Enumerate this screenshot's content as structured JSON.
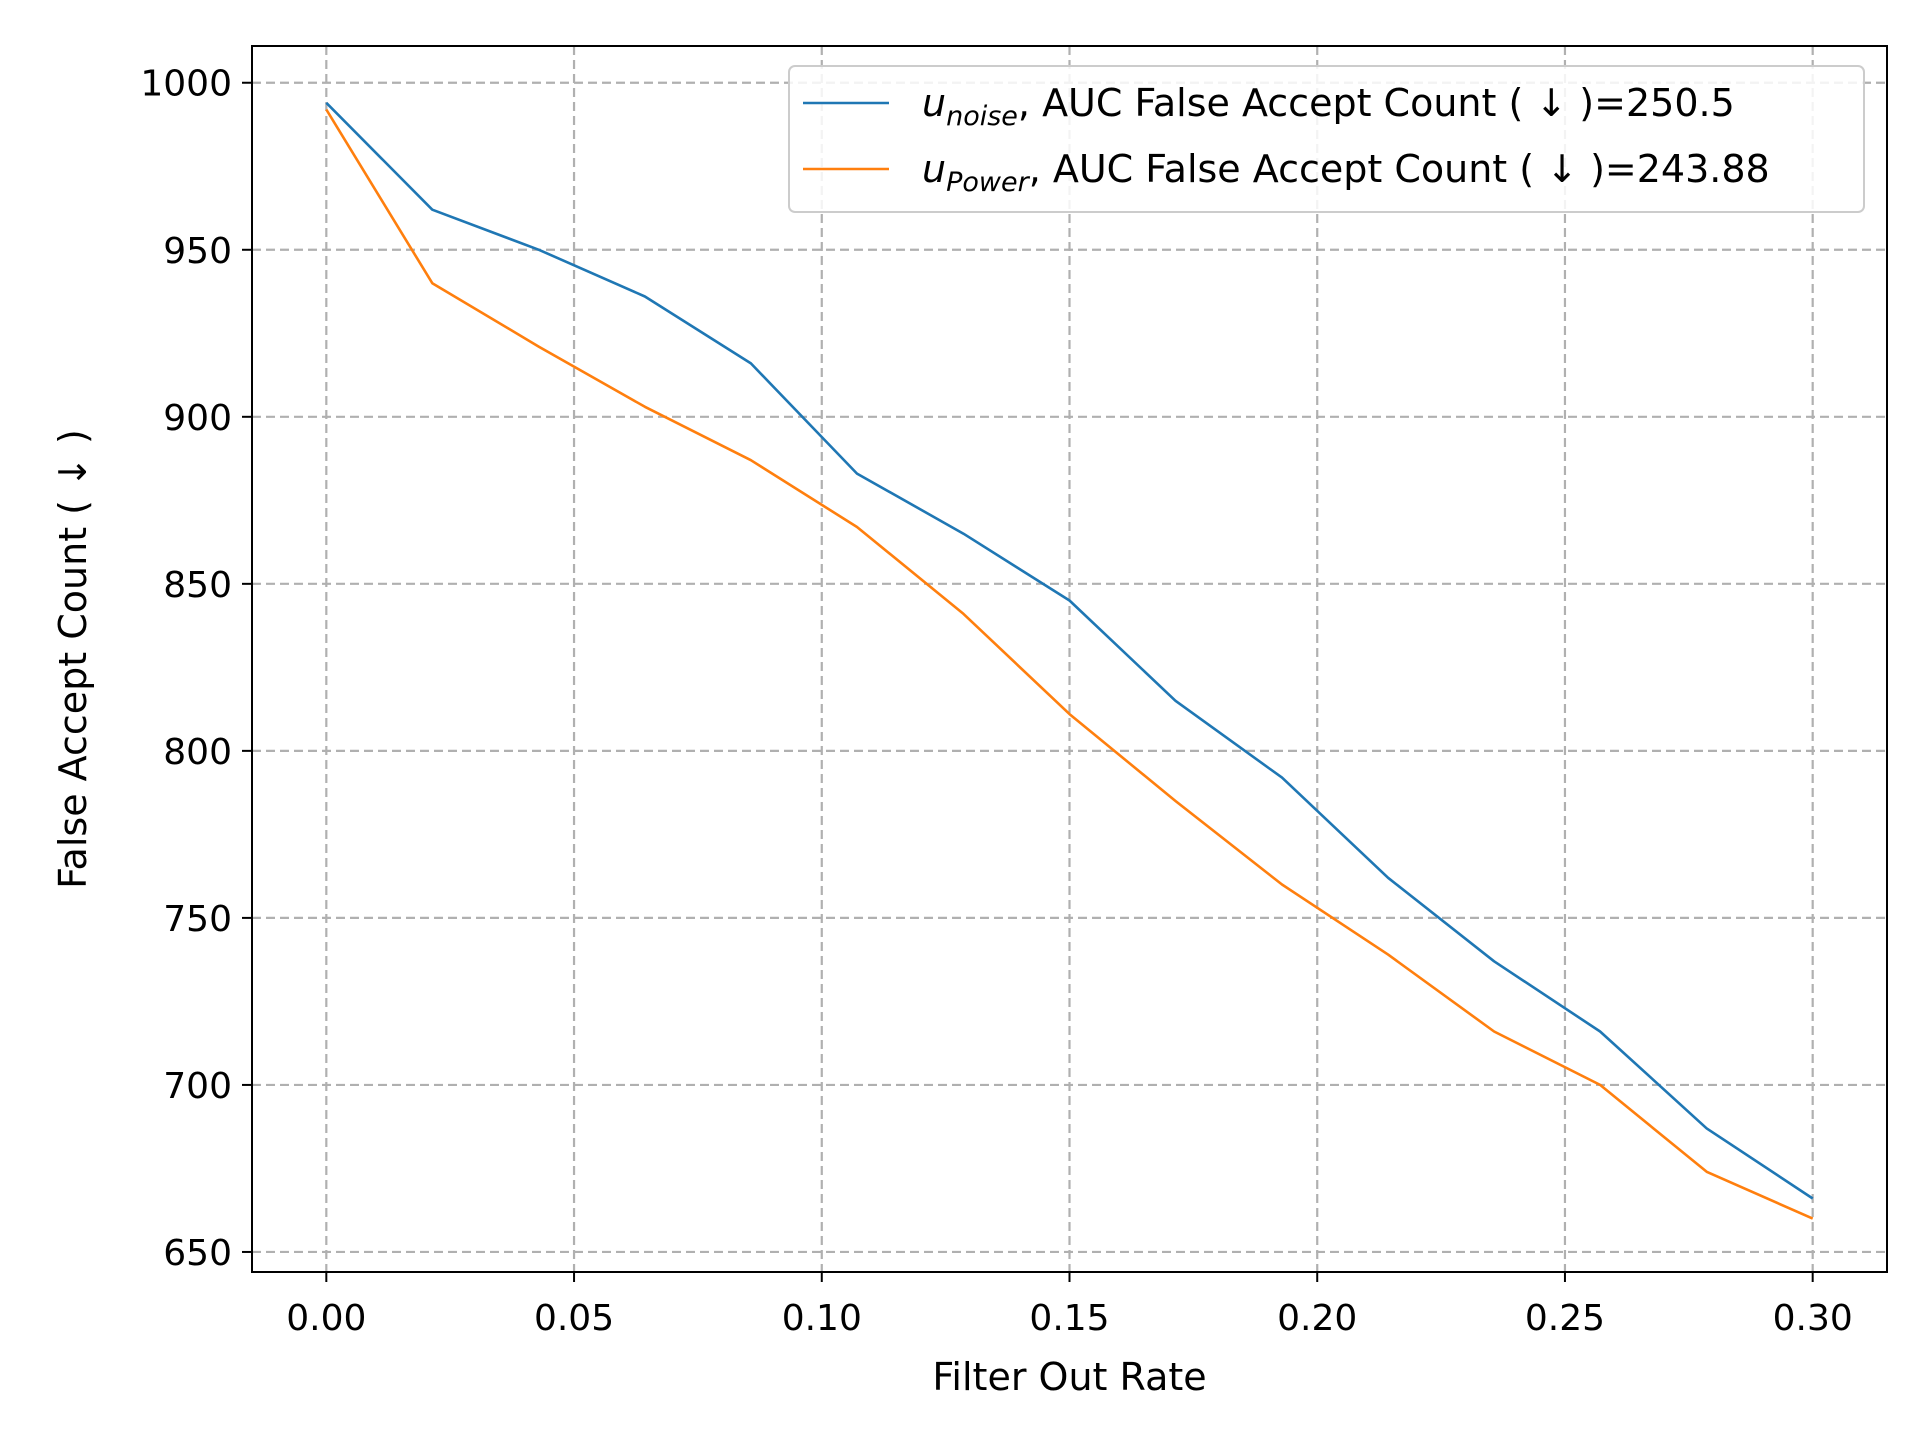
{
  "chart_data": {
    "type": "line",
    "title": "",
    "xlabel": "Filter Out Rate",
    "ylabel": "False Accept Count ( ↓ )",
    "xlim": [
      -0.015,
      0.315
    ],
    "ylim": [
      644,
      1011
    ],
    "xticks": [
      0.0,
      0.05,
      0.1,
      0.15,
      0.2,
      0.25,
      0.3
    ],
    "xtick_labels": [
      "0.00",
      "0.05",
      "0.10",
      "0.15",
      "0.20",
      "0.25",
      "0.30"
    ],
    "yticks": [
      650,
      700,
      750,
      800,
      850,
      900,
      950,
      1000
    ],
    "ytick_labels": [
      "650",
      "700",
      "750",
      "800",
      "850",
      "900",
      "950",
      "1000"
    ],
    "grid": true,
    "legend_position": "top-right",
    "x": [
      0.0,
      0.0214,
      0.0429,
      0.0643,
      0.0857,
      0.1071,
      0.1286,
      0.15,
      0.1714,
      0.1929,
      0.2143,
      0.2357,
      0.2571,
      0.2786,
      0.3
    ],
    "series": [
      {
        "name": "u_noise, AUC False Accept Count ( ↓ )=250.5",
        "legend_main": "u",
        "legend_sub": "noise",
        "legend_rest": ", AUC False Accept Count ( ↓ )=250.5",
        "color": "#1f77b4",
        "values": [
          994,
          962,
          950,
          936,
          916,
          883,
          865,
          845,
          815,
          792,
          762,
          737,
          716,
          687,
          666
        ]
      },
      {
        "name": "u_Power, AUC False Accept Count ( ↓ )=243.88",
        "legend_main": "u",
        "legend_sub": "Power",
        "legend_rest": ", AUC False Accept Count ( ↓ )=243.88",
        "color": "#ff7f0e",
        "values": [
          992,
          940,
          921,
          903,
          887,
          867,
          841,
          811,
          785,
          760,
          739,
          716,
          700,
          674,
          660
        ]
      }
    ]
  }
}
